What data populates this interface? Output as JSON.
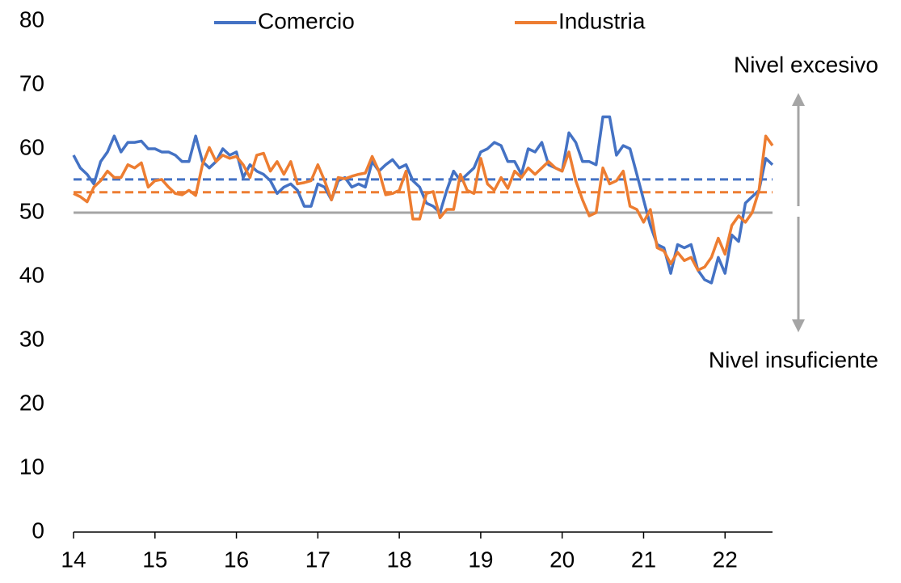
{
  "chart_data": {
    "type": "line",
    "x": [
      14,
      14.083,
      14.167,
      14.25,
      14.333,
      14.417,
      14.5,
      14.583,
      14.667,
      14.75,
      14.833,
      14.917,
      15,
      15.083,
      15.167,
      15.25,
      15.333,
      15.417,
      15.5,
      15.583,
      15.667,
      15.75,
      15.833,
      15.917,
      16,
      16.083,
      16.167,
      16.25,
      16.333,
      16.417,
      16.5,
      16.583,
      16.667,
      16.75,
      16.833,
      16.917,
      17,
      17.083,
      17.167,
      17.25,
      17.333,
      17.417,
      17.5,
      17.583,
      17.667,
      17.75,
      17.833,
      17.917,
      18,
      18.083,
      18.167,
      18.25,
      18.333,
      18.417,
      18.5,
      18.583,
      18.667,
      18.75,
      18.833,
      18.917,
      19,
      19.083,
      19.167,
      19.25,
      19.333,
      19.417,
      19.5,
      19.583,
      19.667,
      19.75,
      19.833,
      19.917,
      20,
      20.083,
      20.167,
      20.25,
      20.333,
      20.417,
      20.5,
      20.583,
      20.667,
      20.75,
      20.833,
      20.917,
      21,
      21.083,
      21.167,
      21.25,
      21.333,
      21.417,
      21.5,
      21.583,
      21.667,
      21.75,
      21.833,
      21.917,
      22,
      22.083,
      22.167,
      22.25,
      22.333,
      22.417,
      22.5,
      22.583
    ],
    "series": [
      {
        "name": "Comercio",
        "color": "#4472c4",
        "values": [
          59,
          57,
          56,
          54.5,
          58,
          59.5,
          62,
          59.5,
          61,
          61,
          61.2,
          60,
          60,
          59.5,
          59.5,
          59,
          58,
          58,
          62,
          58,
          57,
          58,
          60,
          59,
          59.5,
          55.5,
          57.5,
          56.5,
          56,
          55,
          53,
          54,
          54.5,
          53.5,
          51,
          51,
          54.5,
          54,
          52,
          55,
          55.5,
          54,
          54.5,
          54,
          58,
          56.5,
          57.5,
          58.3,
          57,
          57.5,
          55,
          54,
          51.5,
          51,
          50,
          53.5,
          56.5,
          55,
          56,
          57,
          59.5,
          60,
          61,
          60.5,
          58,
          58,
          56,
          60,
          59.5,
          61,
          57.5,
          57,
          56.5,
          62.5,
          61,
          58,
          58,
          57.5,
          65,
          65,
          59,
          60.5,
          60,
          56,
          52,
          48,
          45,
          44.5,
          40.5,
          45,
          44.5,
          45,
          41,
          39.5,
          39,
          43,
          40.5,
          46.5,
          45.5,
          51.5,
          52.5,
          53.5,
          58.5,
          57.5
        ]
      },
      {
        "name": "Industria",
        "color": "#ed7d31",
        "values": [
          53,
          52.5,
          51.7,
          54,
          55,
          56.5,
          55.5,
          55.5,
          57.5,
          57,
          57.8,
          54,
          55,
          55.2,
          54,
          53,
          52.8,
          53.5,
          52.7,
          57.5,
          60.2,
          58,
          59,
          58.5,
          58.8,
          57.5,
          55.5,
          59,
          59.3,
          56.5,
          58,
          56,
          58,
          54.5,
          54.7,
          55,
          57.5,
          55,
          52,
          55.5,
          55.3,
          55.7,
          56,
          56.2,
          58.8,
          56.5,
          52.8,
          53,
          53.5,
          56.5,
          49,
          49,
          53,
          53.3,
          49.2,
          50.5,
          50.5,
          56,
          53.5,
          53,
          58.5,
          54.5,
          53.5,
          55.5,
          53.8,
          56.5,
          55.5,
          57,
          56,
          57,
          58,
          57,
          56.5,
          59.5,
          55,
          52,
          49.5,
          50,
          57,
          54.5,
          55,
          56.5,
          51,
          50.5,
          48.5,
          50.5,
          44.5,
          44,
          42,
          43.8,
          42.5,
          43,
          41,
          41.5,
          43,
          46,
          43.5,
          48,
          49.5,
          48.5,
          50,
          53.5,
          62,
          60.5
        ]
      }
    ],
    "hlines": [
      {
        "value": 55.2,
        "color": "#4472c4",
        "dashed": true
      },
      {
        "value": 53.2,
        "color": "#ed7d31",
        "dashed": true
      },
      {
        "value": 50,
        "color": "#a5a5a5",
        "dashed": false
      }
    ],
    "annotations": [
      "Nivel excesivo",
      "Nivel insuficiente"
    ],
    "xlim": [
      14,
      22.583
    ],
    "xticks": [
      14,
      15,
      16,
      17,
      18,
      19,
      20,
      21,
      22
    ],
    "ylim": [
      0,
      80
    ],
    "yticks": [
      0,
      10,
      20,
      30,
      40,
      50,
      60,
      70,
      80
    ],
    "legend": "top"
  }
}
